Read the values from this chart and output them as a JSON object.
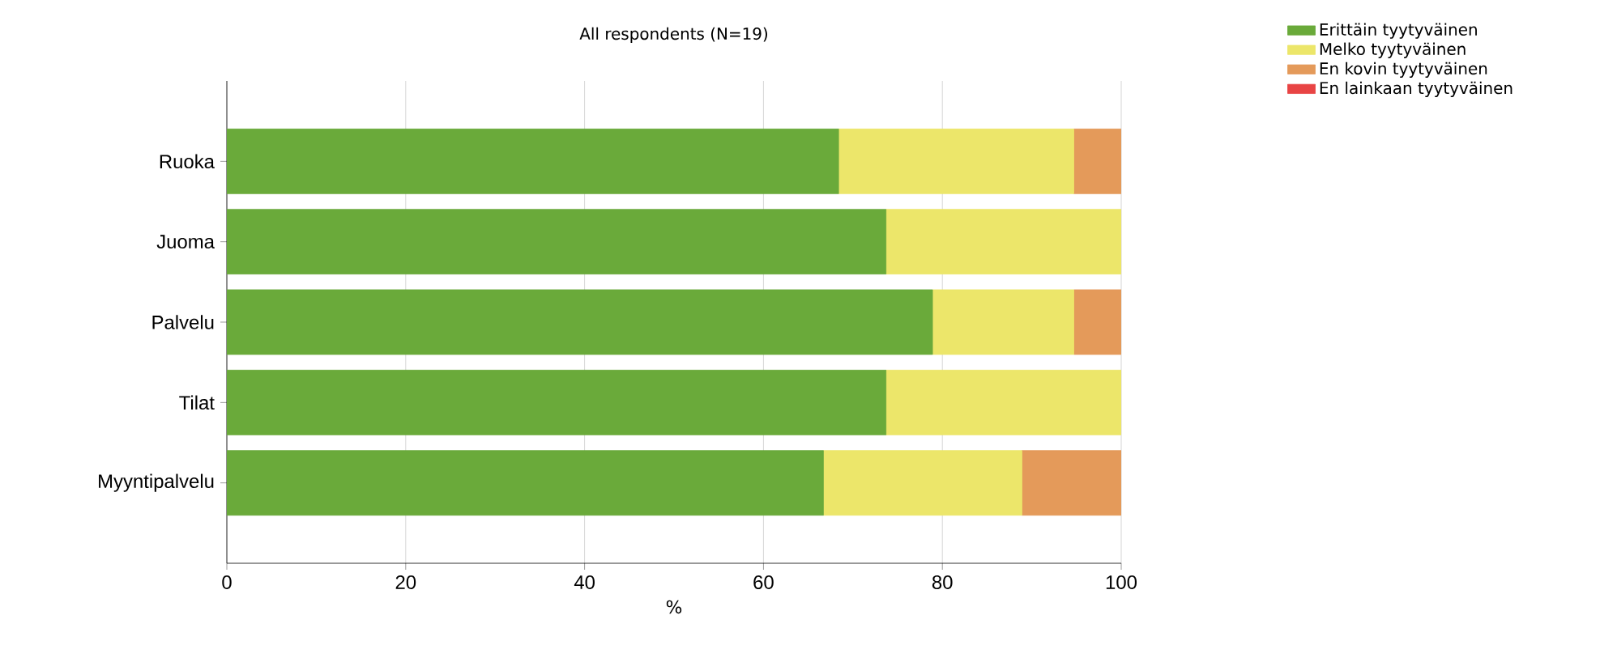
{
  "chart_data": {
    "type": "bar",
    "orientation": "horizontal",
    "stacked": true,
    "title": "All respondents (N=19)",
    "xlabel": "%",
    "categories": [
      "Ruoka",
      "Juoma",
      "Palvelu",
      "Tilat",
      "Myyntipalvelu"
    ],
    "series": [
      {
        "name": "Erittäin tyytyväinen",
        "color": "#6aaa3a",
        "values": [
          68.4,
          73.7,
          78.9,
          73.7,
          66.7
        ]
      },
      {
        "name": "Melko tyytyväinen",
        "color": "#ece66a",
        "values": [
          26.3,
          26.3,
          15.8,
          26.3,
          22.2
        ]
      },
      {
        "name": "En kovin tyytyväinen",
        "color": "#e49a5a",
        "values": [
          5.3,
          0,
          5.3,
          0,
          11.1
        ]
      },
      {
        "name": "En lainkaan tyytyväinen",
        "color": "#e84444",
        "values": [
          0,
          0,
          0,
          0,
          0
        ]
      }
    ],
    "xlim": [
      0,
      100
    ],
    "xticks": [
      0,
      20,
      40,
      60,
      80,
      100
    ],
    "grid": "x",
    "legend": "top right"
  }
}
